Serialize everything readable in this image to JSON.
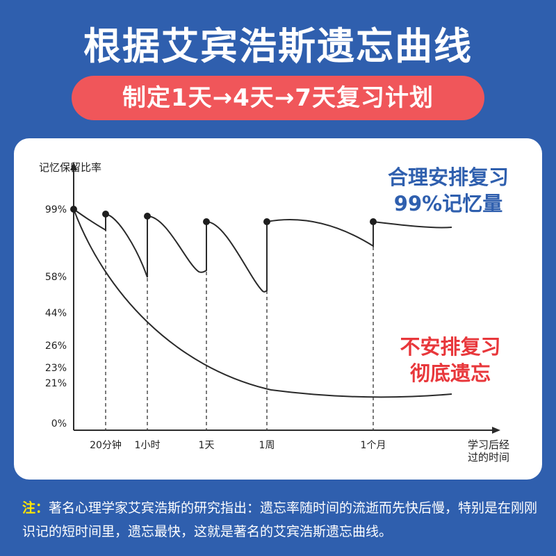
{
  "header": {
    "title": "根据艾宾浩斯遗忘曲线",
    "subtitle": "制定1天→4天→7天复习计划"
  },
  "chart_data": {
    "type": "line",
    "ylabel": "记忆保留比率",
    "xlabel": "学习后经过的时间",
    "ytick_labels": [
      "99%",
      "58%",
      "44%",
      "26%",
      "23%",
      "21%",
      "0%"
    ],
    "xtick_labels": [
      "20分钟",
      "1小时",
      "1天",
      "1周",
      "1个月"
    ],
    "annotations": {
      "good": "合理安排复习\n99%记忆量",
      "bad": "不安排复习\n彻底遗忘"
    },
    "colors": {
      "good": "#2f5fae",
      "bad": "#e8373b",
      "line": "#2a2a2a"
    }
  },
  "footnote": {
    "label": "注：",
    "text": "著名心理学家艾宾浩斯的研究指出：遗忘率随时间的流逝而先快后慢，特别是在刚刚识记的短时间里，遗忘最快，这就是著名的艾宾浩斯遗忘曲线。"
  }
}
